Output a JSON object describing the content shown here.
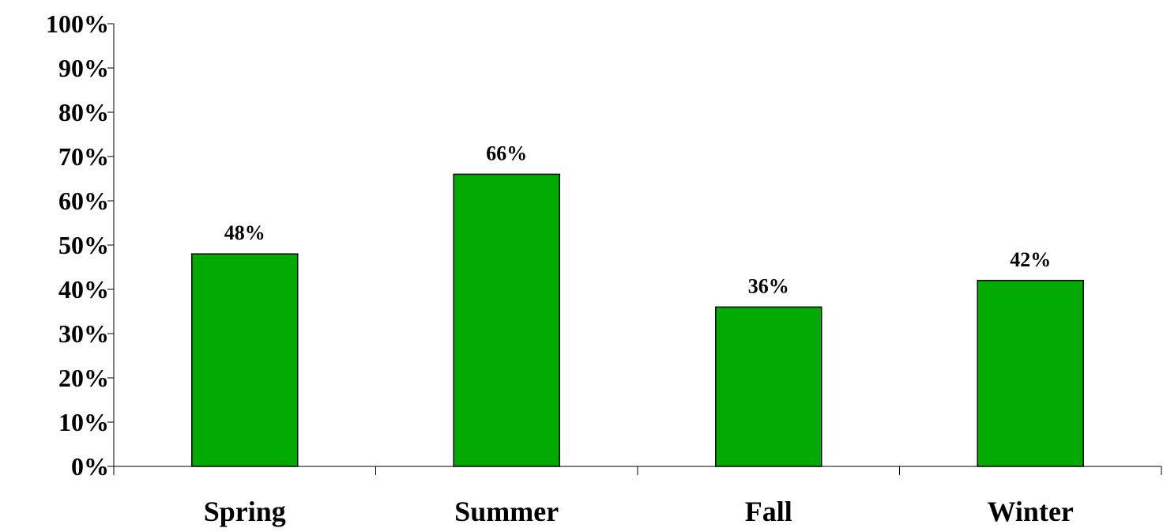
{
  "colors": {
    "bar": "#00AA00",
    "bar_stroke": "#000000",
    "axis": "#000000",
    "text": "#000000",
    "background": "#FFFFFF"
  },
  "chart_data": {
    "type": "bar",
    "categories": [
      "Spring",
      "Summer",
      "Fall",
      "Winter"
    ],
    "values": [
      48,
      66,
      36,
      42
    ],
    "value_labels": [
      "48%",
      "66%",
      "36%",
      "42%"
    ],
    "ylim": [
      0,
      100
    ],
    "yticks": [
      0,
      10,
      20,
      30,
      40,
      50,
      60,
      70,
      80,
      90,
      100
    ],
    "ytick_labels": [
      "0%",
      "10%",
      "20%",
      "30%",
      "40%",
      "50%",
      "60%",
      "70%",
      "80%",
      "90%",
      "100%"
    ],
    "grid": false,
    "legend": "none"
  }
}
